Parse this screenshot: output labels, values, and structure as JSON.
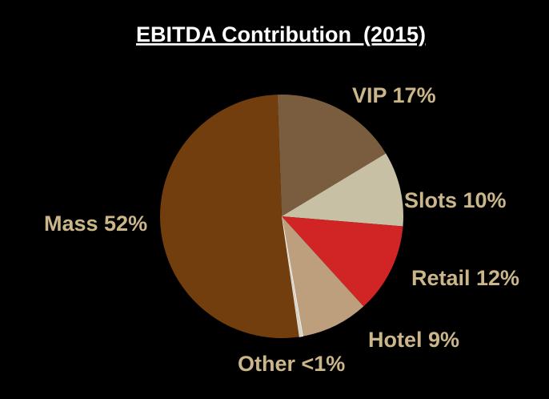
{
  "chart_data": {
    "type": "pie",
    "title": "EBITDA Contribution  (2015)",
    "unit": "%",
    "slices": [
      {
        "label": "VIP 17%",
        "name": "VIP",
        "value": 17,
        "color": "#7a5c3e"
      },
      {
        "label": "Slots 10%",
        "name": "Slots",
        "value": 10,
        "color": "#c7c0a4"
      },
      {
        "label": "Retail 12%",
        "name": "Retail",
        "value": 12,
        "color": "#d12424"
      },
      {
        "label": "Hotel 9%",
        "name": "Hotel",
        "value": 9,
        "color": "#bd9e7d"
      },
      {
        "label": "Other <1%",
        "name": "Other",
        "value": 0.5,
        "color": "#d9d4c8"
      },
      {
        "label": "Mass 52%",
        "name": "Mass",
        "value": 52,
        "color": "#733e0d"
      }
    ],
    "label_color": "#cbb68a",
    "title_color": "#ffffff",
    "background": "#000000",
    "legend": "none"
  }
}
